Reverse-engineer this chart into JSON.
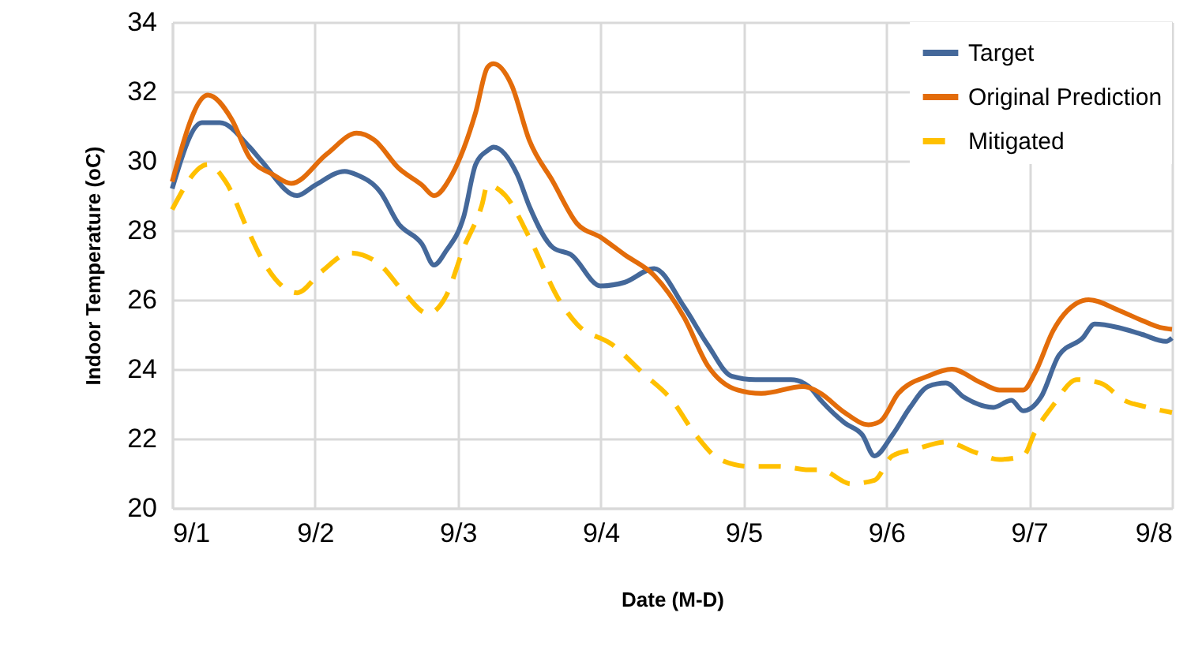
{
  "chart_data": {
    "type": "line",
    "xlabel": "Date (M-D)",
    "ylabel": "Indoor Temperature (oC)",
    "xlim": [
      "--09-01",
      "--09-08"
    ],
    "ylim": [
      20,
      34
    ],
    "xticks": [
      {
        "value": "--09-01",
        "label": "9/1"
      },
      {
        "value": "--09-02",
        "label": "9/2"
      },
      {
        "value": "--09-03",
        "label": "9/3"
      },
      {
        "value": "--09-04",
        "label": "9/4"
      },
      {
        "value": "--09-05",
        "label": "9/5"
      },
      {
        "value": "--09-06",
        "label": "9/6"
      },
      {
        "value": "--09-07",
        "label": "9/7"
      },
      {
        "value": "--09-08",
        "label": "9/8"
      }
    ],
    "yticks": [
      20,
      22,
      24,
      26,
      28,
      30,
      32,
      34
    ],
    "grid": true,
    "legend": "top right",
    "marker": "none",
    "series": [
      {
        "name": "Target",
        "color": "#44689a",
        "line_style": "solid",
        "x": [
          "--09-01T00:00",
          "--09-01T05:00",
          "--09-01T08:00",
          "--09-01T13:00",
          "--09-01T15:00",
          "--09-01T21:00",
          "--09-02T00:00",
          "--09-02T05:00",
          "--09-02T07:00",
          "--09-02T11:00",
          "--09-02T14:00",
          "--09-02T18:00",
          "--09-02T20:00",
          "--09-02T22:00",
          "--09-03T01:00",
          "--09-03T03:00",
          "--09-03T05:00",
          "--09-03T06:00",
          "--09-03T10:00",
          "--09-03T12:00",
          "--09-03T16:00",
          "--09-03T19:00",
          "--09-04T00:00",
          "--09-04T04:00",
          "--09-04T09:00",
          "--09-04T14:00",
          "--09-04T18:00",
          "--09-04T22:00",
          "--09-05T02:00",
          "--09-05T08:00",
          "--09-05T11:00",
          "--09-05T13:00",
          "--09-05T17:00",
          "--09-05T20:00",
          "--09-05T22:00",
          "--09-06T01:00",
          "--09-06T04:00",
          "--09-06T07:00",
          "--09-06T10:00",
          "--09-06T13:00",
          "--09-06T18:00",
          "--09-06T21:00",
          "--09-06T23:00",
          "--09-07T02:00",
          "--09-07T05:00",
          "--09-07T09:00",
          "--09-07T11:00",
          "--09-07T15:00",
          "--09-07T19:00",
          "--09-07T23:00",
          "--09-08T00:00"
        ],
        "values": [
          29.2,
          31.1,
          31.1,
          30.4,
          30.0,
          29.0,
          29.3,
          29.7,
          29.6,
          29.1,
          28.2,
          27.6,
          27.0,
          27.4,
          28.4,
          29.9,
          30.3,
          30.4,
          29.6,
          28.7,
          27.5,
          27.3,
          26.4,
          26.5,
          26.9,
          25.8,
          24.7,
          23.8,
          23.7,
          23.7,
          23.5,
          23.1,
          22.45,
          22.1,
          21.5,
          22.1,
          22.9,
          23.5,
          23.6,
          23.2,
          22.9,
          23.1,
          22.8,
          23.2,
          24.4,
          24.9,
          25.3,
          25.2,
          25.0,
          24.8,
          24.9
        ]
      },
      {
        "name": "Original Prediction",
        "color": "#e36c0a",
        "line_style": "solid",
        "x": [
          "--09-01T00:00",
          "--09-01T06:00",
          "--09-01T10:00",
          "--09-01T13:00",
          "--09-01T17:00",
          "--09-01T20:00",
          "--09-02T02:00",
          "--09-02T07:00",
          "--09-02T10:00",
          "--09-02T14:00",
          "--09-02T18:00",
          "--09-02T20:00",
          "--09-02T23:00",
          "--09-03T03:00",
          "--09-03T05:00",
          "--09-03T06:00",
          "--09-03T09:00",
          "--09-03T12:00",
          "--09-03T16:00",
          "--09-03T20:00",
          "--09-04T00:00",
          "--09-04T04:00",
          "--09-04T09:00",
          "--09-04T14:00",
          "--09-04T18:00",
          "--09-04T23:00",
          "--09-05T03:00",
          "--09-05T10:00",
          "--09-05T12:00",
          "--09-05T13:00",
          "--09-05T17:00",
          "--09-05T21:00",
          "--09-05T23:00",
          "--09-06T02:00",
          "--09-06T07:00",
          "--09-06T11:00",
          "--09-06T16:00",
          "--09-06T19:00",
          "--09-06T23:00",
          "--09-07T01:00",
          "--09-07T04:00",
          "--09-07T08:00",
          "--09-07T10:00",
          "--09-07T15:00",
          "--09-07T19:00",
          "--09-07T22:00",
          "--09-08T00:00"
        ],
        "values": [
          29.4,
          31.9,
          31.2,
          30.1,
          29.6,
          29.35,
          30.2,
          30.8,
          30.6,
          29.8,
          29.3,
          29.0,
          29.6,
          31.4,
          32.7,
          32.8,
          32.2,
          30.6,
          29.4,
          28.2,
          27.8,
          27.3,
          26.7,
          25.5,
          24.1,
          23.4,
          23.3,
          23.5,
          23.4,
          23.3,
          22.75,
          22.4,
          22.5,
          23.3,
          23.8,
          24.0,
          23.6,
          23.4,
          23.4,
          23.9,
          25.1,
          25.9,
          26.0,
          25.7,
          25.4,
          25.2,
          25.15
        ]
      },
      {
        "name": "Mitigated",
        "color": "#ffc000",
        "line_style": "dashed",
        "x": [
          "--09-01T00:00",
          "--09-01T06:00",
          "--09-01T09:00",
          "--09-01T13:00",
          "--09-01T15:00",
          "--09-01T21:00",
          "--09-02T01:00",
          "--09-02T06:00",
          "--09-02T11:00",
          "--09-02T15:00",
          "--09-02T19:00",
          "--09-02T22:00",
          "--09-03T01:00",
          "--09-03T04:00",
          "--09-03T05:00",
          "--09-03T08:00",
          "--09-03T12:00",
          "--09-03T17:00",
          "--09-03T20:00",
          "--09-04T02:00",
          "--09-04T07:00",
          "--09-04T12:00",
          "--09-04T16:00",
          "--09-04T20:00",
          "--09-05T01:00",
          "--09-05T06:00",
          "--09-05T11:00",
          "--09-05T13:00",
          "--09-05T18:00",
          "--09-05T22:00",
          "--09-06T01:00",
          "--09-06T05:00",
          "--09-06T10:00",
          "--09-06T15:00",
          "--09-06T19:00",
          "--09-06T23:00",
          "--09-07T01:00",
          "--09-07T04:00",
          "--09-07T08:00",
          "--09-07T12:00",
          "--09-07T16:00",
          "--09-07T20:00",
          "--09-08T00:00"
        ],
        "values": [
          28.6,
          29.9,
          29.4,
          27.9,
          27.2,
          26.2,
          26.8,
          27.35,
          27.0,
          26.2,
          25.6,
          26.1,
          27.5,
          28.7,
          29.3,
          29.0,
          27.8,
          26.0,
          25.3,
          24.7,
          23.9,
          23.1,
          22.1,
          21.4,
          21.2,
          21.2,
          21.1,
          21.1,
          20.7,
          20.8,
          21.5,
          21.7,
          21.9,
          21.6,
          21.4,
          21.5,
          22.2,
          22.95,
          23.7,
          23.6,
          23.1,
          22.9,
          22.75
        ]
      }
    ]
  }
}
